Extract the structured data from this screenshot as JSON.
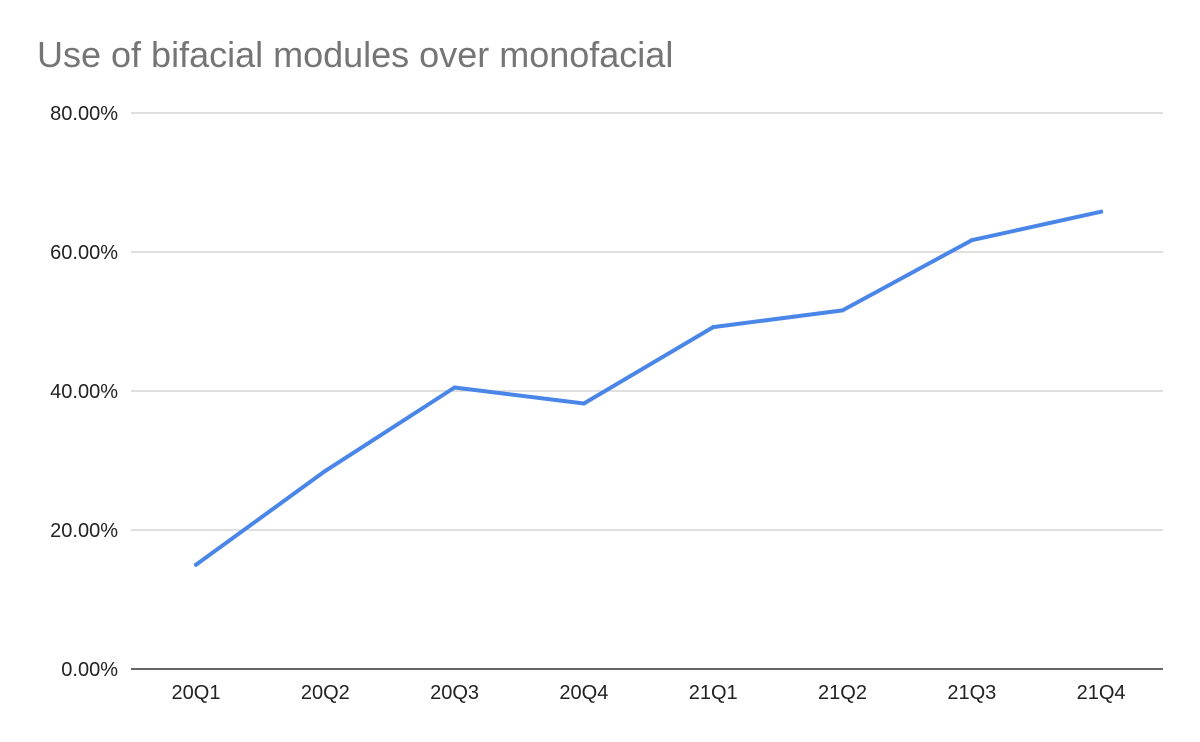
{
  "chart_data": {
    "type": "line",
    "title": "Use of bifacial modules over monofacial",
    "xlabel": "",
    "ylabel": "",
    "categories": [
      "20Q1",
      "20Q2",
      "20Q3",
      "20Q4",
      "21Q1",
      "21Q2",
      "21Q3",
      "21Q4"
    ],
    "series": [
      {
        "values": [
          0.15,
          0.285,
          0.405,
          0.382,
          0.492,
          0.516,
          0.617,
          0.658
        ],
        "color": "#4a86e8"
      }
    ],
    "ylim": [
      0,
      0.8
    ],
    "yticks": [
      0,
      0.2,
      0.4,
      0.6,
      0.8
    ],
    "ytick_labels": [
      "0.00%",
      "20.00%",
      "40.00%",
      "60.00%",
      "80.00%"
    ],
    "grid": true,
    "legend": "none",
    "gridline_color": "#cccccc",
    "axis_color": "#333333"
  }
}
